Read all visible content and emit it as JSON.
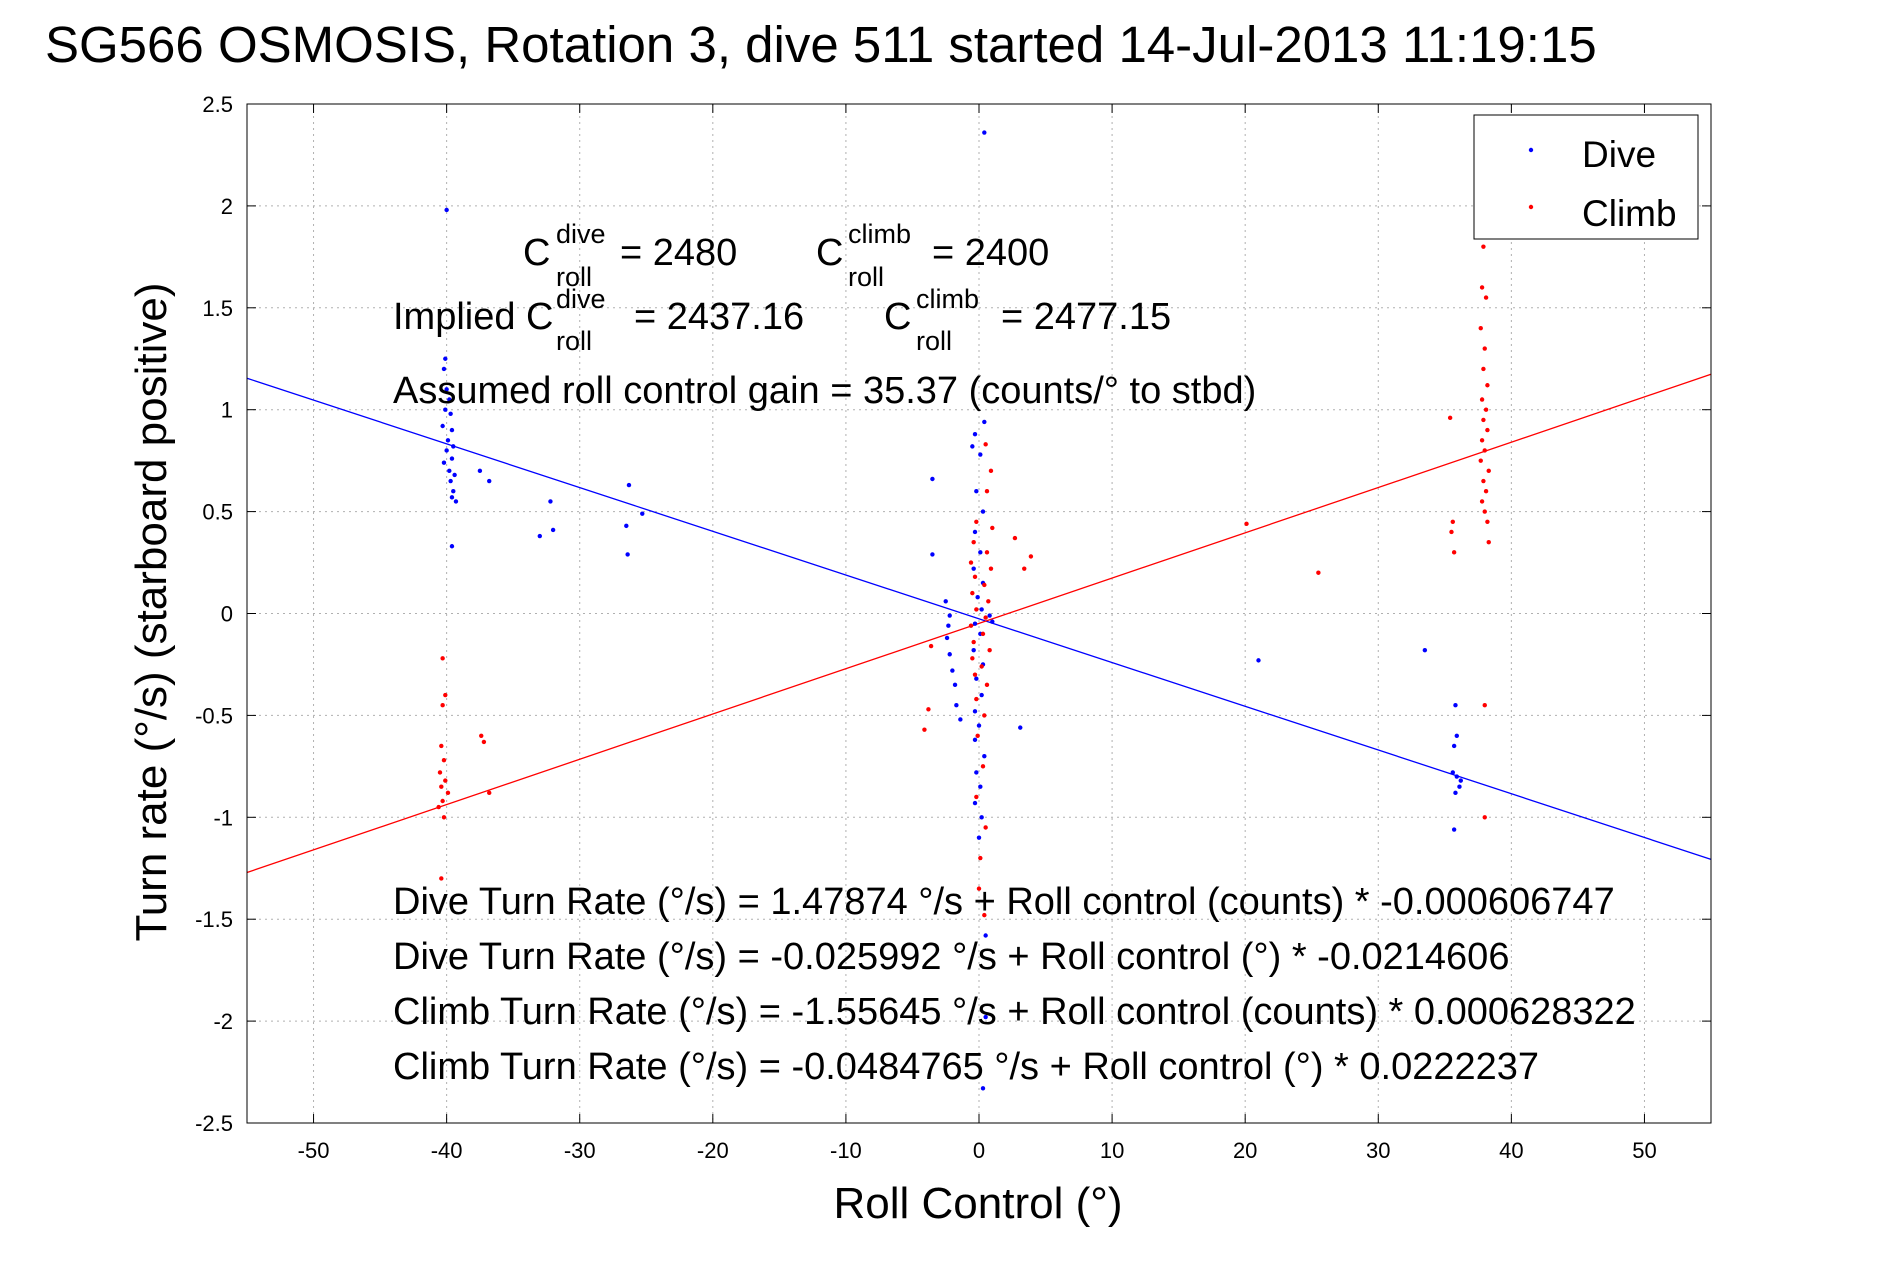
{
  "chart_data": {
    "type": "scatter",
    "title": "SG566 OSMOSIS, Rotation 3, dive 511 started 14-Jul-2013 11:19:15",
    "xlabel": "Roll Control (°)",
    "ylabel": "Turn rate (°/s) (starboard positive)",
    "xlim": [
      -55,
      55
    ],
    "ylim": [
      -2.5,
      2.5
    ],
    "grid": true,
    "legend_position": "top-right",
    "x_ticks": [
      -50,
      -40,
      -30,
      -20,
      -10,
      0,
      10,
      20,
      30,
      40,
      50
    ],
    "x_tick_labels": [
      "-50",
      "-40",
      "-30",
      "-20",
      "-10",
      "0",
      "10",
      "20",
      "30",
      "40",
      "50"
    ],
    "y_ticks": [
      -2.5,
      -2,
      -1.5,
      -1,
      -0.5,
      0,
      0.5,
      1,
      1.5,
      2,
      2.5
    ],
    "y_tick_labels": [
      "-2.5",
      "-2",
      "-1.5",
      "-1",
      "-0.5",
      "0",
      "0.5",
      "1",
      "1.5",
      "2",
      "2.5"
    ],
    "series": [
      {
        "name": "Dive",
        "color": "#0000ff",
        "points": [
          [
            -40,
            1.98
          ],
          [
            -40.1,
            1.25
          ],
          [
            -40.2,
            1.2
          ],
          [
            -40,
            1.1
          ],
          [
            -39.8,
            1.05
          ],
          [
            -40.1,
            1.0
          ],
          [
            -39.7,
            0.98
          ],
          [
            -40.3,
            0.92
          ],
          [
            -39.6,
            0.9
          ],
          [
            -39.9,
            0.85
          ],
          [
            -39.5,
            0.82
          ],
          [
            -40,
            0.8
          ],
          [
            -39.6,
            0.76
          ],
          [
            -40.2,
            0.74
          ],
          [
            -39.8,
            0.7
          ],
          [
            -39.4,
            0.68
          ],
          [
            -39.7,
            0.65
          ],
          [
            -39.5,
            0.6
          ],
          [
            -39.6,
            0.57
          ],
          [
            -39.3,
            0.55
          ],
          [
            -39.6,
            0.33
          ],
          [
            -37.5,
            0.7
          ],
          [
            -36.8,
            0.65
          ],
          [
            -32.2,
            0.55
          ],
          [
            -33,
            0.38
          ],
          [
            -32,
            0.41
          ],
          [
            -26.3,
            0.63
          ],
          [
            -26.5,
            0.43
          ],
          [
            -26.4,
            0.29
          ],
          [
            -25.3,
            0.49
          ],
          [
            -3.5,
            0.66
          ],
          [
            -3.5,
            0.29
          ],
          [
            -2.5,
            0.06
          ],
          [
            -2.2,
            -0.01
          ],
          [
            -2.3,
            -0.06
          ],
          [
            -2.4,
            -0.12
          ],
          [
            -2.2,
            -0.2
          ],
          [
            -2.0,
            -0.28
          ],
          [
            -1.8,
            -0.35
          ],
          [
            -1.7,
            -0.45
          ],
          [
            -1.4,
            -0.52
          ],
          [
            -0.5,
            0.82
          ],
          [
            -0.3,
            0.88
          ],
          [
            0.4,
            0.94
          ],
          [
            0.1,
            0.78
          ],
          [
            -0.2,
            0.6
          ],
          [
            0.3,
            0.5
          ],
          [
            -0.3,
            0.4
          ],
          [
            0.1,
            0.3
          ],
          [
            -0.4,
            0.22
          ],
          [
            0.3,
            0.15
          ],
          [
            -0.1,
            0.08
          ],
          [
            0.2,
            0.02
          ],
          [
            -0.3,
            -0.05
          ],
          [
            0.1,
            -0.1
          ],
          [
            -0.4,
            -0.18
          ],
          [
            0.3,
            -0.25
          ],
          [
            -0.2,
            -0.32
          ],
          [
            0.2,
            -0.4
          ],
          [
            -0.3,
            -0.48
          ],
          [
            0.0,
            -0.55
          ],
          [
            -0.3,
            -0.62
          ],
          [
            0.4,
            -0.7
          ],
          [
            -0.2,
            -0.78
          ],
          [
            0.1,
            -0.85
          ],
          [
            -0.3,
            -0.93
          ],
          [
            0.2,
            -1.0
          ],
          [
            0.0,
            -1.1
          ],
          [
            0.4,
            2.36
          ],
          [
            0.3,
            -2.33
          ],
          [
            0.5,
            -1.98
          ],
          [
            0.5,
            -1.58
          ],
          [
            0.8,
            -0.01
          ],
          [
            1.0,
            -0.04
          ],
          [
            3.1,
            -0.56
          ],
          [
            21,
            -0.23
          ],
          [
            33.5,
            -0.18
          ],
          [
            35.8,
            -0.45
          ],
          [
            35.9,
            -0.6
          ],
          [
            35.7,
            -0.65
          ],
          [
            35.6,
            -0.78
          ],
          [
            35.9,
            -0.8
          ],
          [
            36.1,
            -0.85
          ],
          [
            35.8,
            -0.88
          ],
          [
            36.2,
            -0.82
          ],
          [
            35.7,
            -1.06
          ]
        ]
      },
      {
        "name": "Climb",
        "color": "#ff0000",
        "points": [
          [
            -40.3,
            -0.22
          ],
          [
            -40.1,
            -0.4
          ],
          [
            -40.3,
            -0.45
          ],
          [
            -40.4,
            -0.65
          ],
          [
            -40.2,
            -0.72
          ],
          [
            -40.5,
            -0.78
          ],
          [
            -40.1,
            -0.82
          ],
          [
            -40.4,
            -0.85
          ],
          [
            -39.9,
            -0.88
          ],
          [
            -40.3,
            -0.92
          ],
          [
            -40.6,
            -0.95
          ],
          [
            -40.2,
            -1.0
          ],
          [
            -40.4,
            -1.3
          ],
          [
            -37.4,
            -0.6
          ],
          [
            -37.2,
            -0.63
          ],
          [
            -36.8,
            -0.88
          ],
          [
            -4.1,
            -0.57
          ],
          [
            -3.8,
            -0.47
          ],
          [
            -3.6,
            -0.16
          ],
          [
            0.5,
            0.83
          ],
          [
            0.9,
            0.7
          ],
          [
            0.6,
            0.6
          ],
          [
            -0.2,
            0.45
          ],
          [
            1.0,
            0.42
          ],
          [
            -0.4,
            0.35
          ],
          [
            0.6,
            0.3
          ],
          [
            -0.6,
            0.25
          ],
          [
            0.9,
            0.22
          ],
          [
            -0.3,
            0.18
          ],
          [
            0.4,
            0.14
          ],
          [
            -0.5,
            0.1
          ],
          [
            0.7,
            0.06
          ],
          [
            -0.2,
            0.02
          ],
          [
            0.5,
            -0.02
          ],
          [
            -0.6,
            -0.06
          ],
          [
            0.3,
            -0.1
          ],
          [
            -0.4,
            -0.14
          ],
          [
            0.8,
            -0.18
          ],
          [
            -0.5,
            -0.22
          ],
          [
            0.2,
            -0.26
          ],
          [
            -0.3,
            -0.3
          ],
          [
            0.6,
            -0.35
          ],
          [
            -0.2,
            -0.42
          ],
          [
            0.4,
            -0.5
          ],
          [
            -0.1,
            -0.6
          ],
          [
            0.3,
            -0.75
          ],
          [
            -0.2,
            -0.9
          ],
          [
            0.5,
            -1.05
          ],
          [
            0.1,
            -1.2
          ],
          [
            0.0,
            -1.35
          ],
          [
            0.4,
            -1.48
          ],
          [
            2.7,
            0.37
          ],
          [
            3.4,
            0.22
          ],
          [
            3.9,
            0.28
          ],
          [
            20.1,
            0.44
          ],
          [
            25.5,
            0.2
          ],
          [
            35.4,
            0.96
          ],
          [
            35.6,
            0.45
          ],
          [
            35.5,
            0.4
          ],
          [
            35.7,
            0.3
          ],
          [
            37.9,
            1.8
          ],
          [
            37.8,
            1.6
          ],
          [
            38.1,
            1.55
          ],
          [
            37.7,
            1.4
          ],
          [
            38,
            1.3
          ],
          [
            37.9,
            1.2
          ],
          [
            38.2,
            1.12
          ],
          [
            37.8,
            1.05
          ],
          [
            38.1,
            1.0
          ],
          [
            37.9,
            0.95
          ],
          [
            38.2,
            0.9
          ],
          [
            37.8,
            0.85
          ],
          [
            38.0,
            0.8
          ],
          [
            37.7,
            0.75
          ],
          [
            38.3,
            0.7
          ],
          [
            37.9,
            0.65
          ],
          [
            38.1,
            0.6
          ],
          [
            37.8,
            0.55
          ],
          [
            38.0,
            0.5
          ],
          [
            38.2,
            0.45
          ],
          [
            38.3,
            0.35
          ],
          [
            38,
            -0.45
          ],
          [
            38,
            -1.0
          ]
        ]
      }
    ],
    "fit_lines": [
      {
        "name": "Dive fit",
        "color": "#0000ff",
        "slope": -0.0214606,
        "intercept": -0.025992
      },
      {
        "name": "Climb fit",
        "color": "#ff0000",
        "slope": 0.0222237,
        "intercept": -0.0484765
      }
    ],
    "annotations": {
      "c_roll_dive_label": "C",
      "c_roll_dive_sup": "dive",
      "c_roll_dive_sub": "roll",
      "c_roll_dive_value": "= 2480",
      "c_roll_climb_label": "C",
      "c_roll_climb_sup": "climb",
      "c_roll_climb_sub": "roll",
      "c_roll_climb_value": "= 2400",
      "implied_prefix": "Implied C",
      "implied_dive_sup": "dive",
      "implied_dive_sub": "roll",
      "implied_dive_value": "= 2437.16",
      "implied_climb_label": "C",
      "implied_climb_sup": "climb",
      "implied_climb_sub": "roll",
      "implied_climb_value": "= 2477.15",
      "gain": "Assumed roll control gain = 35.37 (counts/° to stbd)",
      "eq1": "Dive Turn Rate (°/s) = 1.47874 °/s + Roll control (counts) * -0.000606747",
      "eq2": "Dive Turn Rate (°/s) = -0.025992 °/s + Roll control (°) * -0.0214606",
      "eq3": "Climb Turn Rate (°/s) = -1.55645 °/s + Roll control (counts) * 0.000628322",
      "eq4": "Climb Turn Rate (°/s) = -0.0484765 °/s + Roll control (°) * 0.0222237"
    }
  }
}
